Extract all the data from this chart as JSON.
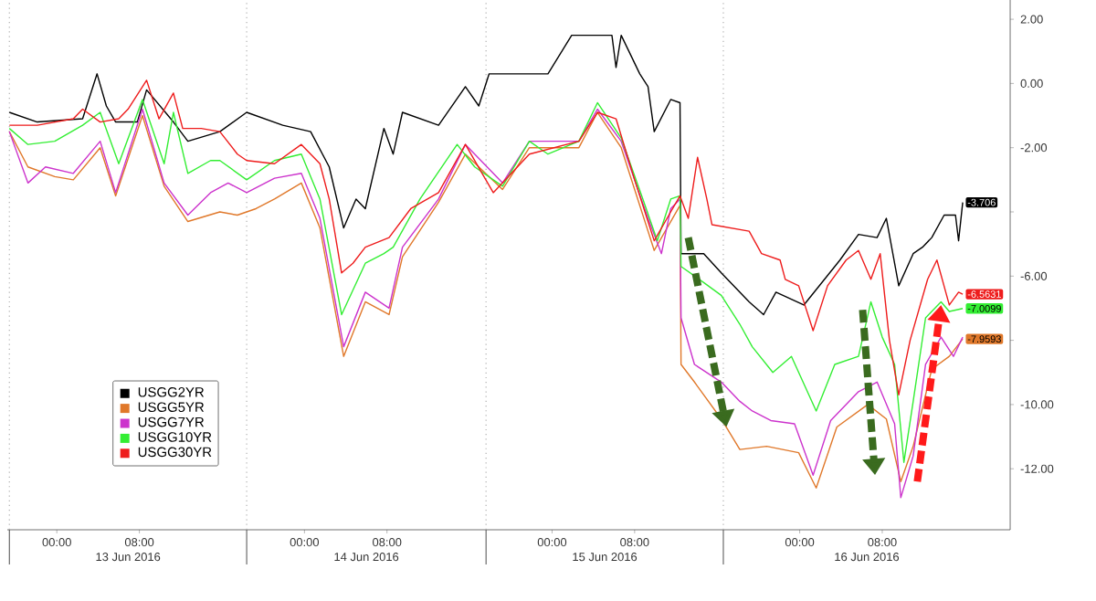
{
  "chart_data": {
    "type": "line",
    "xlim": [
      "2016-06-12T19:12",
      "2016-06-16T20:24"
    ],
    "ylim": [
      -13.9,
      2.6
    ],
    "xticks": [
      {
        "value": "2016-06-13T00:00",
        "label": "00:00"
      },
      {
        "value": "2016-06-13T08:00",
        "label": "08:00"
      },
      {
        "value": "2016-06-14T00:00",
        "label": "00:00"
      },
      {
        "value": "2016-06-14T08:00",
        "label": "08:00"
      },
      {
        "value": "2016-06-15T00:00",
        "label": "00:00"
      },
      {
        "value": "2016-06-15T08:00",
        "label": "08:00"
      },
      {
        "value": "2016-06-16T00:00",
        "label": "00:00"
      },
      {
        "value": "2016-06-16T08:00",
        "label": "08:00"
      }
    ],
    "yticks": [
      {
        "value": 2,
        "label": "2.00"
      },
      {
        "value": 0,
        "label": "0.00"
      },
      {
        "value": -2,
        "label": "-2.00"
      },
      {
        "value": -4,
        "label": null
      },
      {
        "value": -6,
        "label": "-6.00"
      },
      {
        "value": -8,
        "label": null
      },
      {
        "value": -10,
        "label": "-10.00"
      },
      {
        "value": -12,
        "label": "-12.00"
      }
    ],
    "ref_lines": [
      {
        "axis": "x",
        "value": "2016-06-12T19:24",
        "line_style": "dotted",
        "color": "#b0b0b0"
      },
      {
        "axis": "x",
        "value": "2016-06-13T18:24",
        "line_style": "dotted",
        "color": "#b0b0b0"
      },
      {
        "axis": "x",
        "value": "2016-06-14T17:36",
        "line_style": "dotted",
        "color": "#b0b0b0"
      },
      {
        "axis": "x",
        "value": "2016-06-15T16:36",
        "line_style": "dotted",
        "color": "#b0b0b0"
      }
    ],
    "annotations": [
      "13 Jun 2016",
      "14 Jun 2016",
      "15 Jun 2016",
      "16 Jun 2016"
    ],
    "legend": "bottom left",
    "series": [
      {
        "name": "USGG2YR",
        "color": "#000000",
        "x": [
          "2016-06-12T19:24",
          "2016-06-12T22:06",
          "2016-06-13T02:30",
          "2016-06-13T03:54",
          "2016-06-13T04:48",
          "2016-06-13T05:42",
          "2016-06-13T07:48",
          "2016-06-13T08:42",
          "2016-06-13T11:18",
          "2016-06-13T12:42",
          "2016-06-13T15:48",
          "2016-06-13T18:24",
          "2016-06-13T21:54",
          "2016-06-14T00:36",
          "2016-06-14T02:24",
          "2016-06-14T03:48",
          "2016-06-14T05:00",
          "2016-06-14T05:54",
          "2016-06-14T07:42",
          "2016-06-14T08:36",
          "2016-06-14T09:30",
          "2016-06-14T13:00",
          "2016-06-14T15:36",
          "2016-06-14T16:54",
          "2016-06-14T17:54",
          "2016-06-14T23:36",
          "2016-06-15T01:54",
          "2016-06-15T05:48",
          "2016-06-15T06:12",
          "2016-06-15T06:42",
          "2016-06-15T08:30",
          "2016-06-15T09:18",
          "2016-06-15T09:54",
          "2016-06-15T11:30",
          "2016-06-15T12:24",
          "2016-06-15T12:30",
          "2016-06-15T14:42",
          "2016-06-15T16:24",
          "2016-06-15T19:06",
          "2016-06-15T20:30",
          "2016-06-15T21:42",
          "2016-06-16T00:24",
          "2016-06-16T03:54",
          "2016-06-16T05:42",
          "2016-06-16T07:30",
          "2016-06-16T08:24",
          "2016-06-16T09:36",
          "2016-06-16T11:00",
          "2016-06-16T11:54",
          "2016-06-16T12:48",
          "2016-06-16T14:00",
          "2016-06-16T15:06",
          "2016-06-16T15:24",
          "2016-06-16T15:48"
        ],
        "values": [
          -0.9,
          -1.2,
          -1.1,
          0.3,
          -0.7,
          -1.2,
          -1.2,
          -0.2,
          -1.2,
          -1.8,
          -1.5,
          -0.9,
          -1.3,
          -1.5,
          -2.6,
          -4.5,
          -3.6,
          -3.9,
          -1.4,
          -2.2,
          -0.9,
          -1.3,
          -0.1,
          -0.7,
          0.3,
          0.3,
          1.5,
          1.5,
          0.5,
          1.5,
          0.3,
          -0.1,
          -1.5,
          -0.5,
          -0.6,
          -5.3,
          -5.3,
          -5.9,
          -6.8,
          -7.2,
          -6.5,
          -6.9,
          -5.5,
          -4.7,
          -4.8,
          -4.2,
          -6.3,
          -5.3,
          -5.1,
          -4.8,
          -4.1,
          -4.1,
          -4.9,
          -3.706
        ],
        "value_labels": [
          null,
          null,
          null,
          null,
          null,
          null,
          null,
          null,
          null,
          null,
          null,
          null,
          null,
          null,
          null,
          null,
          null,
          null,
          null,
          null,
          null,
          null,
          null,
          null,
          null,
          null,
          null,
          null,
          null,
          null,
          null,
          null,
          null,
          null,
          null,
          null,
          null,
          null,
          null,
          null,
          null,
          null,
          null,
          null,
          null,
          null,
          null,
          null,
          null,
          null,
          null,
          null,
          null,
          "-3.706"
        ]
      },
      {
        "name": "USGG5YR",
        "color": "#e0782a",
        "x": [
          "2016-06-12T19:24",
          "2016-06-12T21:12",
          "2016-06-12T23:48",
          "2016-06-13T01:36",
          "2016-06-13T04:12",
          "2016-06-13T05:42",
          "2016-06-13T08:18",
          "2016-06-13T10:24",
          "2016-06-13T12:42",
          "2016-06-13T15:48",
          "2016-06-13T17:30",
          "2016-06-13T19:18",
          "2016-06-13T21:06",
          "2016-06-13T23:42",
          "2016-06-14T01:30",
          "2016-06-14T03:48",
          "2016-06-14T05:54",
          "2016-06-14T08:12",
          "2016-06-14T09:30",
          "2016-06-14T13:00",
          "2016-06-14T15:36",
          "2016-06-14T19:12",
          "2016-06-14T21:48",
          "2016-06-15T02:36",
          "2016-06-15T04:24",
          "2016-06-15T06:42",
          "2016-06-15T09:54",
          "2016-06-15T11:30",
          "2016-06-15T12:24",
          "2016-06-15T12:30",
          "2016-06-15T13:48",
          "2016-06-15T16:24",
          "2016-06-15T18:12",
          "2016-06-15T20:48",
          "2016-06-15T23:54",
          "2016-06-16T01:36",
          "2016-06-16T03:36",
          "2016-06-16T06:36",
          "2016-06-16T08:24",
          "2016-06-16T09:48",
          "2016-06-16T11:00",
          "2016-06-16T12:48",
          "2016-06-16T14:30",
          "2016-06-16T15:48"
        ],
        "values": [
          -1.5,
          -2.6,
          -2.9,
          -3.0,
          -2.0,
          -3.5,
          -1.0,
          -3.2,
          -4.3,
          -4.0,
          -4.1,
          -3.9,
          -3.6,
          -3.1,
          -4.5,
          -8.5,
          -6.8,
          -7.2,
          -5.4,
          -3.7,
          -2.2,
          -3.3,
          -2.0,
          -2.0,
          -0.9,
          -2.0,
          -5.2,
          -4.3,
          -3.8,
          -8.75,
          -9.3,
          -10.45,
          -11.4,
          -11.3,
          -11.5,
          -12.6,
          -10.7,
          -10.0,
          -10.45,
          -12.4,
          -11.3,
          -8.9,
          -8.5,
          -7.9593
        ],
        "value_labels": [
          null,
          null,
          null,
          null,
          null,
          null,
          null,
          null,
          null,
          null,
          null,
          null,
          null,
          null,
          null,
          null,
          null,
          null,
          null,
          null,
          null,
          null,
          null,
          null,
          null,
          null,
          null,
          null,
          null,
          null,
          null,
          null,
          null,
          null,
          null,
          null,
          null,
          null,
          null,
          null,
          null,
          null,
          null,
          "-7.9593"
        ]
      },
      {
        "name": "USGG7YR",
        "color": "#cc33cc",
        "x": [
          "2016-06-12T19:24",
          "2016-06-12T21:12",
          "2016-06-12T22:54",
          "2016-06-13T01:36",
          "2016-06-13T04:12",
          "2016-06-13T05:42",
          "2016-06-13T08:18",
          "2016-06-13T10:24",
          "2016-06-13T12:42",
          "2016-06-13T14:54",
          "2016-06-13T16:36",
          "2016-06-13T18:24",
          "2016-06-13T21:06",
          "2016-06-13T23:42",
          "2016-06-14T01:30",
          "2016-06-14T03:48",
          "2016-06-14T05:54",
          "2016-06-14T08:12",
          "2016-06-14T09:30",
          "2016-06-14T13:00",
          "2016-06-14T15:36",
          "2016-06-14T19:12",
          "2016-06-14T21:48",
          "2016-06-15T02:36",
          "2016-06-15T04:24",
          "2016-06-15T06:42",
          "2016-06-15T09:18",
          "2016-06-15T10:36",
          "2016-06-15T11:30",
          "2016-06-15T12:24",
          "2016-06-15T12:30",
          "2016-06-15T13:48",
          "2016-06-15T16:24",
          "2016-06-15T18:12",
          "2016-06-15T19:24",
          "2016-06-15T21:12",
          "2016-06-15T23:30",
          "2016-06-16T01:18",
          "2016-06-16T03:00",
          "2016-06-16T05:42",
          "2016-06-16T07:30",
          "2016-06-16T09:12",
          "2016-06-16T09:48",
          "2016-06-16T11:00",
          "2016-06-16T12:12",
          "2016-06-16T13:42",
          "2016-06-16T14:54",
          "2016-06-16T15:48"
        ],
        "values": [
          -1.5,
          -3.1,
          -2.6,
          -2.8,
          -1.8,
          -3.4,
          -0.8,
          -3.1,
          -4.1,
          -3.4,
          -3.1,
          -3.4,
          -2.95,
          -2.8,
          -4.2,
          -8.2,
          -6.5,
          -7.0,
          -5.1,
          -3.6,
          -1.9,
          -3.1,
          -1.8,
          -1.8,
          -0.8,
          -1.8,
          -4.2,
          -5.3,
          -3.9,
          -3.6,
          -7.3,
          -8.75,
          -9.3,
          -9.9,
          -10.2,
          -10.5,
          -10.6,
          -12.2,
          -10.5,
          -9.6,
          -9.3,
          -10.6,
          -12.9,
          -11.6,
          -8.75,
          -7.9,
          -8.5,
          -7.9
        ]
      },
      {
        "name": "USGG10YR",
        "color": "#33ee33",
        "x": [
          "2016-06-12T19:24",
          "2016-06-12T21:12",
          "2016-06-12T23:48",
          "2016-06-13T02:30",
          "2016-06-13T04:12",
          "2016-06-13T06:00",
          "2016-06-13T08:18",
          "2016-06-13T10:24",
          "2016-06-13T11:18",
          "2016-06-13T12:42",
          "2016-06-13T14:54",
          "2016-06-13T15:48",
          "2016-06-13T18:24",
          "2016-06-13T21:06",
          "2016-06-13T23:42",
          "2016-06-14T01:30",
          "2016-06-14T03:36",
          "2016-06-14T05:54",
          "2016-06-14T07:42",
          "2016-06-14T08:36",
          "2016-06-14T11:12",
          "2016-06-14T14:48",
          "2016-06-14T16:30",
          "2016-06-14T19:12",
          "2016-06-14T21:48",
          "2016-06-14T23:36",
          "2016-06-15T02:36",
          "2016-06-15T04:24",
          "2016-06-15T06:42",
          "2016-06-15T08:48",
          "2016-06-15T10:12",
          "2016-06-15T11:30",
          "2016-06-15T12:24",
          "2016-06-15T12:30",
          "2016-06-15T14:42",
          "2016-06-15T16:24",
          "2016-06-15T18:12",
          "2016-06-15T19:24",
          "2016-06-15T21:24",
          "2016-06-15T23:12",
          "2016-06-16T01:36",
          "2016-06-16T03:24",
          "2016-06-16T05:42",
          "2016-06-16T06:54",
          "2016-06-16T08:00",
          "2016-06-16T09:12",
          "2016-06-16T10:06",
          "2016-06-16T11:00",
          "2016-06-16T12:12",
          "2016-06-16T13:42",
          "2016-06-16T14:30",
          "2016-06-16T15:48"
        ],
        "values": [
          -1.4,
          -1.9,
          -1.8,
          -1.3,
          -0.9,
          -2.5,
          -0.5,
          -2.5,
          -0.9,
          -2.8,
          -2.4,
          -2.4,
          -3.0,
          -2.4,
          -2.2,
          -3.6,
          -7.2,
          -5.6,
          -5.3,
          -5.1,
          -3.6,
          -1.9,
          -2.6,
          -3.2,
          -1.8,
          -2.2,
          -1.8,
          -0.6,
          -1.7,
          -3.6,
          -4.9,
          -3.6,
          -3.5,
          -5.7,
          -6.2,
          -6.6,
          -7.5,
          -8.2,
          -9.0,
          -8.5,
          -10.2,
          -8.75,
          -8.5,
          -6.8,
          -7.9,
          -8.75,
          -11.8,
          -9.9,
          -7.3,
          -6.8,
          -7.1,
          -7.0099
        ],
        "value_labels": [
          null,
          null,
          null,
          null,
          null,
          null,
          null,
          null,
          null,
          null,
          null,
          null,
          null,
          null,
          null,
          null,
          null,
          null,
          null,
          null,
          null,
          null,
          null,
          null,
          null,
          null,
          null,
          null,
          null,
          null,
          null,
          null,
          null,
          null,
          null,
          null,
          null,
          null,
          null,
          null,
          null,
          null,
          null,
          null,
          null,
          null,
          null,
          null,
          null,
          null,
          null,
          "-7.0099"
        ]
      },
      {
        "name": "USGG30YR",
        "color": "#ee1c1c",
        "x": [
          "2016-06-12T19:24",
          "2016-06-12T22:06",
          "2016-06-13T01:36",
          "2016-06-13T02:30",
          "2016-06-13T04:12",
          "2016-06-13T06:00",
          "2016-06-13T06:54",
          "2016-06-13T08:42",
          "2016-06-13T09:54",
          "2016-06-13T11:18",
          "2016-06-13T12:12",
          "2016-06-13T14:00",
          "2016-06-13T15:48",
          "2016-06-13T17:30",
          "2016-06-13T18:24",
          "2016-06-13T21:06",
          "2016-06-13T23:42",
          "2016-06-14T01:30",
          "2016-06-14T02:24",
          "2016-06-14T03:36",
          "2016-06-14T04:42",
          "2016-06-14T05:54",
          "2016-06-14T08:12",
          "2016-06-14T10:18",
          "2016-06-14T13:00",
          "2016-06-14T15:36",
          "2016-06-14T17:24",
          "2016-06-14T18:18",
          "2016-06-14T21:48",
          "2016-06-15T02:36",
          "2016-06-15T04:24",
          "2016-06-15T06:12",
          "2016-06-15T08:06",
          "2016-06-15T09:54",
          "2016-06-15T11:30",
          "2016-06-15T12:24",
          "2016-06-15T13:12",
          "2016-06-15T14:06",
          "2016-06-15T15:00",
          "2016-06-15T15:30",
          "2016-06-15T19:06",
          "2016-06-15T20:18",
          "2016-06-15T22:06",
          "2016-06-15T22:36",
          "2016-06-15T23:54",
          "2016-06-16T01:18",
          "2016-06-16T02:42",
          "2016-06-16T04:30",
          "2016-06-16T05:42",
          "2016-06-16T06:54",
          "2016-06-16T07:48",
          "2016-06-16T08:42",
          "2016-06-16T09:36",
          "2016-06-16T10:42",
          "2016-06-16T12:24",
          "2016-06-16T13:18",
          "2016-06-16T14:30",
          "2016-06-16T15:24",
          "2016-06-16T15:48"
        ],
        "values": [
          -1.3,
          -1.3,
          -1.1,
          -0.8,
          -1.2,
          -1.1,
          -0.8,
          0.1,
          -1.1,
          -0.3,
          -1.4,
          -1.4,
          -1.5,
          -2.2,
          -2.4,
          -2.5,
          -1.9,
          -2.5,
          -3.6,
          -5.9,
          -5.6,
          -5.1,
          -4.8,
          -3.9,
          -3.4,
          -1.9,
          -2.9,
          -3.4,
          -2.2,
          -1.8,
          -0.9,
          -1.1,
          -3.1,
          -4.9,
          -4.0,
          -3.5,
          -4.2,
          -2.3,
          -3.6,
          -4.4,
          -4.6,
          -5.3,
          -5.5,
          -6.1,
          -6.3,
          -7.7,
          -6.3,
          -5.5,
          -5.2,
          -6.1,
          -5.3,
          -8.0,
          -9.7,
          -8.0,
          -6.1,
          -5.5,
          -6.9,
          -6.5,
          -6.5631
        ],
        "value_labels": [
          null,
          null,
          null,
          null,
          null,
          null,
          null,
          null,
          null,
          null,
          null,
          null,
          null,
          null,
          null,
          null,
          null,
          null,
          null,
          null,
          null,
          null,
          null,
          null,
          null,
          null,
          null,
          null,
          null,
          null,
          null,
          null,
          null,
          null,
          null,
          null,
          null,
          null,
          null,
          null,
          null,
          null,
          null,
          null,
          null,
          null,
          null,
          null,
          null,
          null,
          null,
          null,
          null,
          null,
          null,
          null,
          null,
          null,
          "-6.5631"
        ]
      }
    ]
  }
}
